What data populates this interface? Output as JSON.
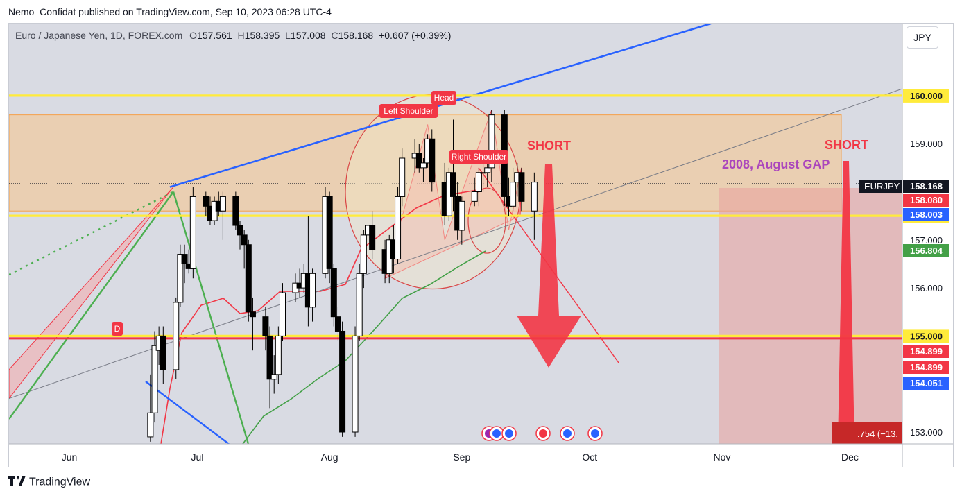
{
  "header": {
    "published": "Nemo_Confidat published on TradingView.com, Sep 10, 2023 06:28 UTC-4"
  },
  "legend": {
    "symbol": "Euro / Japanese Yen, 1D, FOREX.com",
    "open_label": "O",
    "open": "157.561",
    "high_label": "H",
    "high": "158.395",
    "low_label": "L",
    "low": "157.008",
    "close_label": "C",
    "close": "158.168",
    "change": "+0.607 (+0.39%)"
  },
  "currency_button": "JPY",
  "footer": {
    "brand": "TradingView"
  },
  "colors": {
    "background": "#d9dbe3",
    "bull_candle": "#ffffff",
    "bear_candle": "#000000",
    "level_yellow": "#ffeb3b",
    "level_red": "#f23645",
    "trend_blue": "#2962ff",
    "trend_green": "#4caf50",
    "ma_red": "#f23645",
    "ma_green": "#43a047",
    "zone_orange": "#f7c48a",
    "gap_zone": "#e8a3a0"
  },
  "chart_data": {
    "type": "candlestick",
    "symbol": "EURJPY",
    "interval": "1D",
    "x_ticks": [
      "Jun",
      "Jul",
      "Aug",
      "Sep",
      "Oct",
      "Nov",
      "Dec"
    ],
    "y_ticks": [
      "153.000",
      "156.000",
      "157.000",
      "159.000"
    ],
    "ylim": [
      152.8,
      160.9
    ],
    "candles": [
      {
        "t": "2023-06-20",
        "o": 152.9,
        "h": 154.2,
        "l": 152.8,
        "c": 153.4
      },
      {
        "t": "2023-06-21",
        "o": 153.4,
        "h": 155.1,
        "l": 153.2,
        "c": 154.8
      },
      {
        "t": "2023-06-22",
        "o": 154.7,
        "h": 155.2,
        "l": 154.4,
        "c": 155.0
      },
      {
        "t": "2023-06-23",
        "o": 155.0,
        "h": 155.2,
        "l": 154.0,
        "c": 154.3
      },
      {
        "t": "2023-06-26",
        "o": 154.3,
        "h": 155.8,
        "l": 154.1,
        "c": 155.7
      },
      {
        "t": "2023-06-27",
        "o": 155.7,
        "h": 156.9,
        "l": 155.6,
        "c": 156.7
      },
      {
        "t": "2023-06-28",
        "o": 156.7,
        "h": 156.9,
        "l": 156.1,
        "c": 156.5
      },
      {
        "t": "2023-06-29",
        "o": 156.5,
        "h": 156.8,
        "l": 156.3,
        "c": 156.4
      },
      {
        "t": "2023-06-30",
        "o": 156.4,
        "h": 158.1,
        "l": 156.2,
        "c": 157.9
      },
      {
        "t": "2023-07-03",
        "o": 157.9,
        "h": 158.0,
        "l": 157.5,
        "c": 157.7
      },
      {
        "t": "2023-07-04",
        "o": 157.7,
        "h": 157.9,
        "l": 157.3,
        "c": 157.4
      },
      {
        "t": "2023-07-05",
        "o": 157.4,
        "h": 157.9,
        "l": 157.3,
        "c": 157.8
      },
      {
        "t": "2023-07-06",
        "o": 157.8,
        "h": 158.0,
        "l": 157.5,
        "c": 157.6
      },
      {
        "t": "2023-07-07",
        "o": 157.6,
        "h": 158.0,
        "l": 157.0,
        "c": 157.9
      },
      {
        "t": "2023-07-10",
        "o": 157.9,
        "h": 158.0,
        "l": 157.2,
        "c": 157.3
      },
      {
        "t": "2023-07-11",
        "o": 157.3,
        "h": 157.4,
        "l": 156.8,
        "c": 157.1
      },
      {
        "t": "2023-07-12",
        "o": 157.1,
        "h": 157.2,
        "l": 156.4,
        "c": 156.9
      },
      {
        "t": "2023-07-13",
        "o": 156.9,
        "h": 157.0,
        "l": 155.3,
        "c": 155.5
      },
      {
        "t": "2023-07-14",
        "o": 155.5,
        "h": 155.8,
        "l": 154.7,
        "c": 155.4
      },
      {
        "t": "2023-07-17",
        "o": 155.4,
        "h": 155.6,
        "l": 154.7,
        "c": 155.0
      },
      {
        "t": "2023-07-18",
        "o": 155.0,
        "h": 155.2,
        "l": 153.5,
        "c": 154.1
      },
      {
        "t": "2023-07-19",
        "o": 154.1,
        "h": 154.6,
        "l": 153.8,
        "c": 154.2
      },
      {
        "t": "2023-07-20",
        "o": 154.2,
        "h": 155.2,
        "l": 154.0,
        "c": 155.0
      },
      {
        "t": "2023-07-21",
        "o": 155.0,
        "h": 156.1,
        "l": 154.9,
        "c": 155.9
      },
      {
        "t": "2023-07-24",
        "o": 155.9,
        "h": 156.3,
        "l": 155.7,
        "c": 156.1
      },
      {
        "t": "2023-07-25",
        "o": 156.1,
        "h": 156.4,
        "l": 155.8,
        "c": 156.0
      },
      {
        "t": "2023-07-26",
        "o": 156.0,
        "h": 156.5,
        "l": 155.9,
        "c": 156.3
      },
      {
        "t": "2023-07-27",
        "o": 156.3,
        "h": 157.5,
        "l": 155.2,
        "c": 155.6
      },
      {
        "t": "2023-07-28",
        "o": 155.6,
        "h": 156.4,
        "l": 155.3,
        "c": 156.3
      },
      {
        "t": "2023-07-31",
        "o": 156.3,
        "h": 158.1,
        "l": 156.2,
        "c": 157.9
      },
      {
        "t": "2023-08-01",
        "o": 157.9,
        "h": 158.0,
        "l": 156.1,
        "c": 156.4
      },
      {
        "t": "2023-08-02",
        "o": 156.4,
        "h": 156.5,
        "l": 155.2,
        "c": 155.4
      },
      {
        "t": "2023-08-03",
        "o": 155.4,
        "h": 155.6,
        "l": 154.9,
        "c": 155.1
      },
      {
        "t": "2023-08-04",
        "o": 155.1,
        "h": 155.3,
        "l": 152.9,
        "c": 153.0
      },
      {
        "t": "2023-08-07",
        "o": 153.0,
        "h": 155.2,
        "l": 152.9,
        "c": 155.0
      },
      {
        "t": "2023-08-08",
        "o": 155.0,
        "h": 156.5,
        "l": 154.9,
        "c": 156.3
      },
      {
        "t": "2023-08-09",
        "o": 156.3,
        "h": 157.2,
        "l": 156.0,
        "c": 157.1
      },
      {
        "t": "2023-08-10",
        "o": 157.1,
        "h": 157.5,
        "l": 156.8,
        "c": 157.3
      },
      {
        "t": "2023-08-11",
        "o": 157.3,
        "h": 157.6,
        "l": 156.6,
        "c": 156.8
      },
      {
        "t": "2023-08-14",
        "o": 156.8,
        "h": 157.0,
        "l": 156.1,
        "c": 156.3
      },
      {
        "t": "2023-08-15",
        "o": 156.3,
        "h": 157.1,
        "l": 156.1,
        "c": 157.0
      },
      {
        "t": "2023-08-16",
        "o": 157.0,
        "h": 157.3,
        "l": 156.3,
        "c": 156.6
      },
      {
        "t": "2023-08-17",
        "o": 156.6,
        "h": 158.1,
        "l": 156.5,
        "c": 157.9
      },
      {
        "t": "2023-08-18",
        "o": 157.9,
        "h": 158.9,
        "l": 157.7,
        "c": 158.7
      },
      {
        "t": "2023-08-21",
        "o": 158.7,
        "h": 159.1,
        "l": 158.4,
        "c": 158.8
      },
      {
        "t": "2023-08-22",
        "o": 158.8,
        "h": 159.0,
        "l": 158.4,
        "c": 158.5
      },
      {
        "t": "2023-08-23",
        "o": 158.5,
        "h": 158.7,
        "l": 158.2,
        "c": 158.6
      },
      {
        "t": "2023-08-24",
        "o": 158.6,
        "h": 159.2,
        "l": 158.5,
        "c": 159.1
      },
      {
        "t": "2023-08-25",
        "o": 159.1,
        "h": 159.3,
        "l": 158.0,
        "c": 158.2
      },
      {
        "t": "2023-08-28",
        "o": 158.2,
        "h": 158.6,
        "l": 157.3,
        "c": 157.5
      },
      {
        "t": "2023-08-29",
        "o": 157.5,
        "h": 158.5,
        "l": 157.4,
        "c": 158.4
      },
      {
        "t": "2023-08-30",
        "o": 158.4,
        "h": 159.5,
        "l": 157.6,
        "c": 157.9
      },
      {
        "t": "2023-08-31",
        "o": 157.9,
        "h": 158.2,
        "l": 157.0,
        "c": 157.2
      },
      {
        "t": "2023-09-01",
        "o": 157.2,
        "h": 157.9,
        "l": 156.9,
        "c": 157.8
      },
      {
        "t": "2023-09-04",
        "o": 157.8,
        "h": 158.3,
        "l": 157.7,
        "c": 158.0
      },
      {
        "t": "2023-09-05",
        "o": 158.0,
        "h": 158.5,
        "l": 157.7,
        "c": 158.4
      },
      {
        "t": "2023-09-06",
        "o": 158.4,
        "h": 158.6,
        "l": 158.0,
        "c": 158.4
      },
      {
        "t": "2023-09-07",
        "o": 158.4,
        "h": 158.7,
        "l": 158.1,
        "c": 158.5
      },
      {
        "t": "2023-09-08",
        "o": 158.5,
        "h": 159.7,
        "l": 158.2,
        "c": 159.6
      },
      {
        "t": "2023-09-11",
        "o": 159.6,
        "h": 159.7,
        "l": 157.7,
        "c": 157.9
      },
      {
        "t": "2023-09-12",
        "o": 157.9,
        "h": 158.3,
        "l": 157.5,
        "c": 157.7
      },
      {
        "t": "2023-09-13",
        "o": 157.7,
        "h": 158.5,
        "l": 157.6,
        "c": 158.2
      },
      {
        "t": "2023-09-14",
        "o": 158.2,
        "h": 158.6,
        "l": 157.9,
        "c": 158.4
      },
      {
        "t": "2023-09-15",
        "o": 158.4,
        "h": 158.5,
        "l": 157.6,
        "c": 157.8
      },
      {
        "t": "2023-09-18",
        "o": 157.6,
        "h": 158.4,
        "l": 157.0,
        "c": 158.2
      }
    ],
    "horizontal_levels": [
      {
        "price": 160.0,
        "label": "160.000",
        "color": "#ffeb3b",
        "text": "#131722"
      },
      {
        "price": 157.5,
        "label": "157.500",
        "color": "#ffeb3b",
        "text": "#131722"
      },
      {
        "price": 155.0,
        "label": "155.000",
        "color": "#ffeb3b",
        "text": "#131722"
      },
      {
        "price": 154.95,
        "label": "",
        "color": "#f23645",
        "text": "#ffffff"
      }
    ],
    "price_labels": [
      {
        "price": 158.168,
        "label": "158.168",
        "tag": "EURJPY",
        "bg": "#131722",
        "fg": "#ffffff"
      },
      {
        "price": 158.08,
        "label": "158.080",
        "bg": "#f23645",
        "fg": "#ffffff"
      },
      {
        "price": 158.003,
        "label": "158.003",
        "bg": "#2962ff",
        "fg": "#ffffff"
      },
      {
        "price": 156.804,
        "label": "156.804",
        "bg": "#43a047",
        "fg": "#ffffff"
      },
      {
        "price": 154.899,
        "label": "154.899",
        "bg": "#f23645",
        "fg": "#ffffff"
      },
      {
        "price": 154.899,
        "label": "154.899",
        "bg": "#f23645",
        "fg": "#ffffff"
      },
      {
        "price": 154.051,
        "label": "154.051",
        "bg": "#2962ff",
        "fg": "#ffffff"
      }
    ],
    "annotations": {
      "pattern_labels": [
        "Left Shoulder",
        "Head",
        "Right Shoulder"
      ],
      "short_labels": [
        "SHORT",
        "SHORT"
      ],
      "gap_label": "2008, August GAP",
      "event_marker": "D",
      "bottom_readout": ".754 (−13."
    }
  }
}
